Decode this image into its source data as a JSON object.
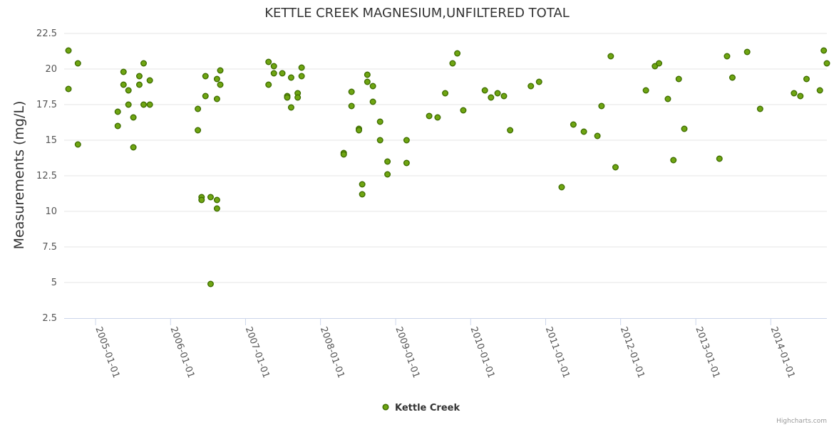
{
  "chart_data": {
    "type": "scatter",
    "title": "KETTLE CREEK MAGNESIUM,UNFILTERED TOTAL",
    "ylabel": "Measurements (mg/L)",
    "xlabel": "",
    "ylim": [
      2.5,
      22.5
    ],
    "yticks": [
      "2.5",
      "5",
      "7.5",
      "10",
      "12.5",
      "15",
      "17.5",
      "20",
      "22.5"
    ],
    "xlim": [
      "2004-08-01",
      "2014-10-01"
    ],
    "xticks": [
      "2005-01-01",
      "2006-01-01",
      "2007-01-01",
      "2008-01-01",
      "2009-01-01",
      "2010-01-01",
      "2011-01-01",
      "2012-01-01",
      "2013-01-01",
      "2014-01-01"
    ],
    "grid": true,
    "legend": {
      "position": "bottom-center",
      "label": "Kettle Creek"
    },
    "credits": "Highcharts.com",
    "colors": {
      "marker_fill": "#6fa512",
      "marker_stroke": "#3f6e00",
      "axis_text": "#555555"
    },
    "series": [
      {
        "name": "Kettle Creek",
        "points": [
          [
            "2004-08-22",
            21.3
          ],
          [
            "2004-08-22",
            18.6
          ],
          [
            "2004-10-07",
            20.4
          ],
          [
            "2004-10-07",
            14.7
          ],
          [
            "2005-04-19",
            17.0
          ],
          [
            "2005-04-19",
            16.0
          ],
          [
            "2005-05-17",
            19.8
          ],
          [
            "2005-05-17",
            18.9
          ],
          [
            "2005-06-10",
            18.5
          ],
          [
            "2005-06-10",
            17.5
          ],
          [
            "2005-07-04",
            16.6
          ],
          [
            "2005-07-04",
            14.5
          ],
          [
            "2005-08-02",
            19.5
          ],
          [
            "2005-08-02",
            18.9
          ],
          [
            "2005-08-23",
            20.4
          ],
          [
            "2005-08-23",
            17.5
          ],
          [
            "2005-09-22",
            19.2
          ],
          [
            "2005-09-22",
            17.5
          ],
          [
            "2006-05-14",
            17.2
          ],
          [
            "2006-05-14",
            15.7
          ],
          [
            "2006-06-01",
            11.0
          ],
          [
            "2006-06-01",
            10.8
          ],
          [
            "2006-06-20",
            19.5
          ],
          [
            "2006-06-20",
            18.1
          ],
          [
            "2006-07-15",
            11.0
          ],
          [
            "2006-07-15",
            4.9
          ],
          [
            "2006-08-15",
            19.3
          ],
          [
            "2006-08-15",
            17.9
          ],
          [
            "2006-08-15",
            10.8
          ],
          [
            "2006-08-15",
            10.2
          ],
          [
            "2006-08-31",
            19.9
          ],
          [
            "2006-08-31",
            18.9
          ],
          [
            "2007-04-23",
            20.5
          ],
          [
            "2007-04-23",
            18.9
          ],
          [
            "2007-05-19",
            20.2
          ],
          [
            "2007-05-19",
            19.7
          ],
          [
            "2007-06-29",
            19.7
          ],
          [
            "2007-07-23",
            18.1
          ],
          [
            "2007-07-23",
            18.0
          ],
          [
            "2007-08-11",
            19.4
          ],
          [
            "2007-08-11",
            17.3
          ],
          [
            "2007-09-12",
            18.3
          ],
          [
            "2007-09-12",
            18.0
          ],
          [
            "2007-10-01",
            20.1
          ],
          [
            "2007-10-01",
            19.5
          ],
          [
            "2008-04-23",
            14.1
          ],
          [
            "2008-04-23",
            14.0
          ],
          [
            "2008-05-31",
            18.4
          ],
          [
            "2008-05-31",
            17.4
          ],
          [
            "2008-07-06",
            15.8
          ],
          [
            "2008-07-06",
            15.7
          ],
          [
            "2008-07-22",
            11.9
          ],
          [
            "2008-07-22",
            11.2
          ],
          [
            "2008-08-16",
            19.6
          ],
          [
            "2008-08-16",
            19.1
          ],
          [
            "2008-09-12",
            18.8
          ],
          [
            "2008-09-12",
            17.7
          ],
          [
            "2008-10-17",
            16.3
          ],
          [
            "2008-10-17",
            15.0
          ],
          [
            "2008-11-22",
            13.5
          ],
          [
            "2008-11-22",
            12.6
          ],
          [
            "2009-02-23",
            15.0
          ],
          [
            "2009-02-23",
            13.4
          ],
          [
            "2009-06-13",
            16.7
          ],
          [
            "2009-07-24",
            16.6
          ],
          [
            "2009-08-30",
            18.3
          ],
          [
            "2009-10-05",
            20.4
          ],
          [
            "2009-10-28",
            21.1
          ],
          [
            "2009-11-26",
            17.1
          ],
          [
            "2010-03-11",
            18.5
          ],
          [
            "2010-04-10",
            18.0
          ],
          [
            "2010-05-12",
            18.3
          ],
          [
            "2010-06-12",
            18.1
          ],
          [
            "2010-07-12",
            15.7
          ],
          [
            "2010-10-21",
            18.8
          ],
          [
            "2010-11-30",
            19.1
          ],
          [
            "2011-03-20",
            11.7
          ],
          [
            "2011-05-16",
            16.1
          ],
          [
            "2011-07-06",
            15.6
          ],
          [
            "2011-09-10",
            15.3
          ],
          [
            "2011-09-30",
            17.4
          ],
          [
            "2011-11-14",
            20.9
          ],
          [
            "2011-12-07",
            13.1
          ],
          [
            "2012-05-03",
            18.5
          ],
          [
            "2012-06-16",
            20.2
          ],
          [
            "2012-07-06",
            20.4
          ],
          [
            "2012-08-18",
            17.9
          ],
          [
            "2012-09-14",
            13.6
          ],
          [
            "2012-10-10",
            19.3
          ],
          [
            "2012-11-06",
            15.8
          ],
          [
            "2013-04-26",
            13.7
          ],
          [
            "2013-06-02",
            20.9
          ],
          [
            "2013-06-28",
            19.4
          ],
          [
            "2013-09-08",
            21.2
          ],
          [
            "2013-11-10",
            17.2
          ],
          [
            "2014-04-24",
            18.3
          ],
          [
            "2014-05-25",
            18.1
          ],
          [
            "2014-06-24",
            19.3
          ],
          [
            "2014-08-28",
            18.5
          ],
          [
            "2014-09-16",
            21.3
          ],
          [
            "2014-10-01",
            20.4
          ]
        ]
      }
    ]
  }
}
